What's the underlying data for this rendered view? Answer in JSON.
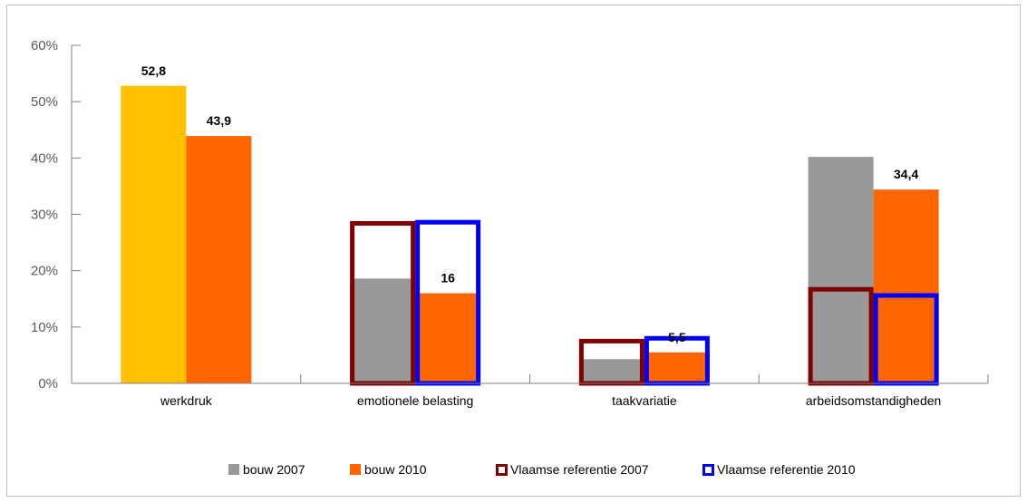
{
  "chart_data": {
    "type": "bar",
    "title": "",
    "xlabel": "",
    "ylabel": "",
    "ylim": [
      0,
      60
    ],
    "y_ticks": [
      "0%",
      "10%",
      "20%",
      "30%",
      "40%",
      "50%",
      "60%"
    ],
    "categories": [
      "werkdruk",
      "emotionele belasting",
      "taakvariatie",
      "arbeidsomstandigheden"
    ],
    "series": [
      {
        "name": "bouw 2007",
        "kind": "filled",
        "values": [
          52.8,
          18.6,
          4.3,
          40.2
        ]
      },
      {
        "name": "bouw 2010",
        "kind": "filled",
        "values": [
          43.9,
          16,
          5.5,
          34.4
        ]
      },
      {
        "name": "Vlaamse referentie 2007",
        "kind": "outline",
        "values": [
          null,
          28.8,
          7.9,
          17.1
        ]
      },
      {
        "name": "Vlaamse referentie 2010",
        "kind": "outline",
        "values": [
          null,
          29.0,
          8.4,
          16.0
        ]
      }
    ],
    "data_labels": [
      {
        "category": 0,
        "series": 0,
        "text": "52,8"
      },
      {
        "category": 0,
        "series": 1,
        "text": "43,9"
      },
      {
        "category": 1,
        "series": 1,
        "text": "16"
      },
      {
        "category": 2,
        "series": 1,
        "text": "5,5"
      },
      {
        "category": 3,
        "series": 1,
        "text": "34,4"
      }
    ],
    "point_colors": {
      "0-0": "#ffc000"
    },
    "colors": {
      "bouw 2007": "#999999",
      "bouw 2010": "#ff6600",
      "Vlaamse referentie 2007": "#7f0000",
      "Vlaamse referentie 2010": "#0000ff"
    },
    "legend_position": "bottom",
    "grid": false
  }
}
